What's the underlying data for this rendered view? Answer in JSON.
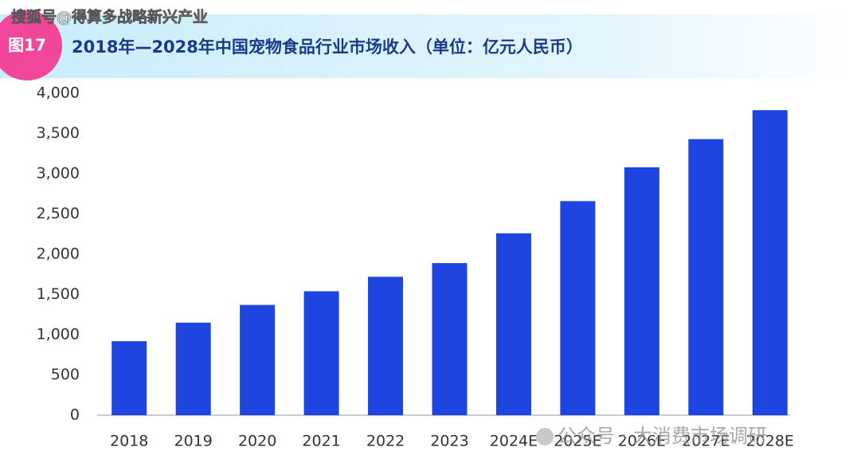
{
  "watermark": "搜狐号@得算多战略新兴产业",
  "badge": "图17",
  "source_watermark": "公众号 · 大消费市场调研",
  "chart_data": {
    "type": "bar",
    "title": "2018年—2028年中国宠物食品行业市场收入（单位：亿元人民币）",
    "categories": [
      "2018",
      "2019",
      "2020",
      "2021",
      "2022",
      "2023",
      "2024E",
      "2025E",
      "2026E",
      "2027E",
      "2028E"
    ],
    "values": [
      920,
      1150,
      1370,
      1540,
      1720,
      1890,
      2260,
      2660,
      3080,
      3430,
      3790
    ],
    "color": "#1f45e0",
    "ylim": [
      0,
      4000
    ],
    "yticks": [
      0,
      500,
      {
        "value": 1000,
        "label": "1,000"
      },
      {
        "value": 1500,
        "label": "1,500"
      },
      {
        "value": 2000,
        "label": "2,000"
      },
      {
        "value": 2500,
        "label": "2,500"
      },
      {
        "value": 3000,
        "label": "3,000"
      },
      {
        "value": 3500,
        "label": "3,500"
      },
      {
        "value": 4000,
        "label": "4,000"
      }
    ],
    "grid": false
  }
}
